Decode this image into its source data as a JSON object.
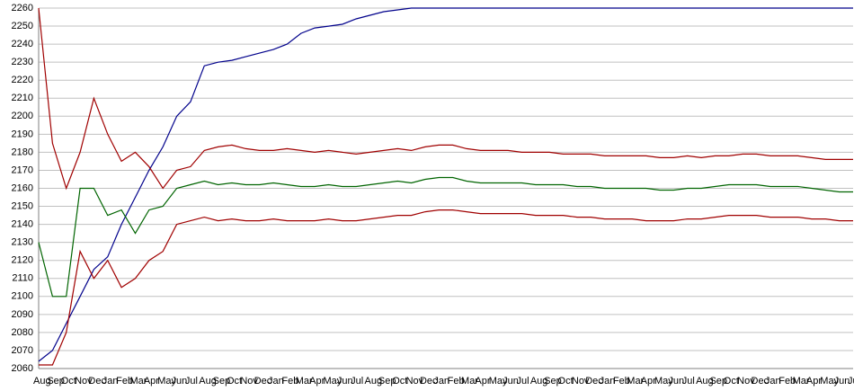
{
  "chart_data": {
    "type": "line",
    "categories": [
      "Aug",
      "Sep",
      "Oct",
      "Nov",
      "Dec",
      "Jan",
      "Feb",
      "Mar",
      "Apr",
      "May",
      "Jun",
      "Jul",
      "Aug",
      "Sep",
      "Oct",
      "Nov",
      "Dec",
      "Jan",
      "Feb",
      "Mar",
      "Apr",
      "May",
      "Jun",
      "Jul",
      "Aug",
      "Sep",
      "Oct",
      "Nov",
      "Dec",
      "Jan",
      "Feb",
      "Mar",
      "Apr",
      "May",
      "Jun",
      "Jul",
      "Aug",
      "Sep",
      "Oct",
      "Nov",
      "Dec",
      "Jan",
      "Feb",
      "Mar",
      "Apr",
      "May",
      "Jun",
      "Jul",
      "Aug",
      "Sep",
      "Oct",
      "Nov",
      "Dec",
      "Jan",
      "Feb",
      "Mar",
      "Apr",
      "May",
      "Jun",
      "Jul"
    ],
    "series": [
      {
        "color": "#00008b",
        "values": [
          2064,
          2070,
          2085,
          2100,
          2115,
          2122,
          2140,
          2155,
          2170,
          2183,
          2200,
          2208,
          2228,
          2230,
          2231,
          2233,
          2235,
          2237,
          2240,
          2246,
          2249,
          2250,
          2251,
          2254,
          2256,
          2258,
          2259,
          2260,
          2260,
          2260,
          2260,
          2260,
          2260,
          2260,
          2260,
          2260,
          2260,
          2260,
          2260,
          2260,
          2260,
          2260,
          2260,
          2260,
          2260,
          2260,
          2260,
          2260,
          2260,
          2260,
          2260,
          2260,
          2260,
          2260,
          2260,
          2260,
          2260,
          2260,
          2260,
          2260
        ]
      },
      {
        "color": "#a00000",
        "values": [
          2260,
          2185,
          2160,
          2180,
          2210,
          2190,
          2175,
          2180,
          2172,
          2160,
          2170,
          2172,
          2181,
          2183,
          2184,
          2182,
          2181,
          2181,
          2182,
          2181,
          2180,
          2181,
          2180,
          2179,
          2180,
          2181,
          2182,
          2181,
          2183,
          2184,
          2184,
          2182,
          2181,
          2181,
          2181,
          2180,
          2180,
          2180,
          2179,
          2179,
          2179,
          2178,
          2178,
          2178,
          2178,
          2177,
          2177,
          2178,
          2177,
          2178,
          2178,
          2179,
          2179,
          2178,
          2178,
          2178,
          2177,
          2176,
          2176,
          2176
        ]
      },
      {
        "color": "#006400",
        "values": [
          2130,
          2100,
          2100,
          2160,
          2160,
          2145,
          2148,
          2135,
          2148,
          2150,
          2160,
          2162,
          2164,
          2162,
          2163,
          2162,
          2162,
          2163,
          2162,
          2161,
          2161,
          2162,
          2161,
          2161,
          2162,
          2163,
          2164,
          2163,
          2165,
          2166,
          2166,
          2164,
          2163,
          2163,
          2163,
          2163,
          2162,
          2162,
          2162,
          2161,
          2161,
          2160,
          2160,
          2160,
          2160,
          2159,
          2159,
          2160,
          2160,
          2161,
          2162,
          2162,
          2162,
          2161,
          2161,
          2161,
          2160,
          2159,
          2158,
          2158
        ]
      },
      {
        "color": "#a00000",
        "values": [
          2062,
          2062,
          2080,
          2125,
          2110,
          2120,
          2105,
          2110,
          2120,
          2125,
          2140,
          2142,
          2144,
          2142,
          2143,
          2142,
          2142,
          2143,
          2142,
          2142,
          2142,
          2143,
          2142,
          2142,
          2143,
          2144,
          2145,
          2145,
          2147,
          2148,
          2148,
          2147,
          2146,
          2146,
          2146,
          2146,
          2145,
          2145,
          2145,
          2144,
          2144,
          2143,
          2143,
          2143,
          2142,
          2142,
          2142,
          2143,
          2143,
          2144,
          2145,
          2145,
          2145,
          2144,
          2144,
          2144,
          2143,
          2143,
          2142,
          2142
        ]
      }
    ],
    "ylim": [
      2060,
      2260
    ],
    "yticks": [
      2060,
      2070,
      2080,
      2090,
      2100,
      2110,
      2120,
      2130,
      2140,
      2150,
      2160,
      2170,
      2180,
      2190,
      2200,
      2210,
      2220,
      2230,
      2240,
      2250,
      2260
    ],
    "grid": true
  }
}
